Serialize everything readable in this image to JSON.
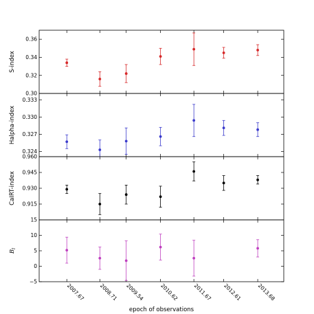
{
  "chart_data": {
    "type": "scatter",
    "errorbars": true,
    "xlabel": "epoch of observations",
    "x_categories": [
      "2007.67",
      "2008.71",
      "2009.54",
      "2010.62",
      "2011.67",
      "2012.61",
      "2013.68"
    ],
    "x_values": [
      2007.67,
      2008.71,
      2009.54,
      2010.62,
      2011.67,
      2012.61,
      2013.68
    ],
    "xlim": [
      2006.8,
      2014.5
    ],
    "grid": false,
    "legend": "none",
    "panels": [
      {
        "ylabel": "S-index",
        "ylabel_italic": false,
        "ylim": [
          0.3,
          0.37
        ],
        "yticks": [
          0.3,
          0.32,
          0.34,
          0.36
        ],
        "ytick_labels": [
          "0.30",
          "0.32",
          "0.34",
          "0.36"
        ],
        "color": "#d62728",
        "series": [
          {
            "x": 2007.67,
            "y": 0.334,
            "err": 0.004
          },
          {
            "x": 2008.71,
            "y": 0.316,
            "err": 0.008
          },
          {
            "x": 2009.54,
            "y": 0.322,
            "err": 0.01
          },
          {
            "x": 2010.62,
            "y": 0.341,
            "err": 0.009
          },
          {
            "x": 2011.67,
            "y": 0.349,
            "err": 0.018
          },
          {
            "x": 2012.61,
            "y": 0.345,
            "err": 0.006
          },
          {
            "x": 2013.68,
            "y": 0.348,
            "err": 0.006
          }
        ]
      },
      {
        "ylabel": "Halpha-index",
        "ylabel_italic": false,
        "ylim": [
          0.3231,
          0.3341
        ],
        "yticks": [
          0.324,
          0.327,
          0.33,
          0.333
        ],
        "ytick_labels": [
          "0.324",
          "0.327",
          "0.330",
          "0.333"
        ],
        "color": "#3a3acc",
        "series": [
          {
            "x": 2007.67,
            "y": 0.3257,
            "err": 0.0012
          },
          {
            "x": 2008.71,
            "y": 0.3243,
            "err": 0.0017
          },
          {
            "x": 2009.54,
            "y": 0.3258,
            "err": 0.0023
          },
          {
            "x": 2010.62,
            "y": 0.3266,
            "err": 0.0016
          },
          {
            "x": 2011.67,
            "y": 0.3294,
            "err": 0.0028
          },
          {
            "x": 2012.61,
            "y": 0.3281,
            "err": 0.0013
          },
          {
            "x": 2013.68,
            "y": 0.3278,
            "err": 0.0012
          }
        ]
      },
      {
        "ylabel": "CaIRT-index",
        "ylabel_italic": false,
        "ylim": [
          0.9,
          0.96
        ],
        "yticks": [
          0.915,
          0.93,
          0.945,
          0.96
        ],
        "ytick_labels": [
          "0.915",
          "0.930",
          "0.945",
          "0.960"
        ],
        "color": "#000000",
        "series": [
          {
            "x": 2007.67,
            "y": 0.929,
            "err": 0.004
          },
          {
            "x": 2008.71,
            "y": 0.915,
            "err": 0.01
          },
          {
            "x": 2009.54,
            "y": 0.924,
            "err": 0.009
          },
          {
            "x": 2010.62,
            "y": 0.922,
            "err": 0.01
          },
          {
            "x": 2011.67,
            "y": 0.946,
            "err": 0.009
          },
          {
            "x": 2012.61,
            "y": 0.935,
            "err": 0.007
          },
          {
            "x": 2013.68,
            "y": 0.938,
            "err": 0.004
          }
        ]
      },
      {
        "ylabel": "B",
        "ylabel_sub": "l",
        "ylabel_italic": true,
        "ylim": [
          -5,
          15
        ],
        "yticks": [
          -5,
          0,
          5,
          10,
          15
        ],
        "ytick_labels": [
          "−5",
          "0",
          "5",
          "10",
          "15"
        ],
        "color": "#bf3fbf",
        "series": [
          {
            "x": 2007.67,
            "y": 5.2,
            "err": 4.2
          },
          {
            "x": 2008.71,
            "y": 2.6,
            "err": 3.6
          },
          {
            "x": 2009.54,
            "y": 1.8,
            "err": 6.4
          },
          {
            "x": 2010.62,
            "y": 6.2,
            "err": 4.2
          },
          {
            "x": 2011.67,
            "y": 2.6,
            "err": 5.8
          },
          {
            "x": 2013.68,
            "y": 5.8,
            "err": 2.8
          }
        ]
      }
    ]
  }
}
